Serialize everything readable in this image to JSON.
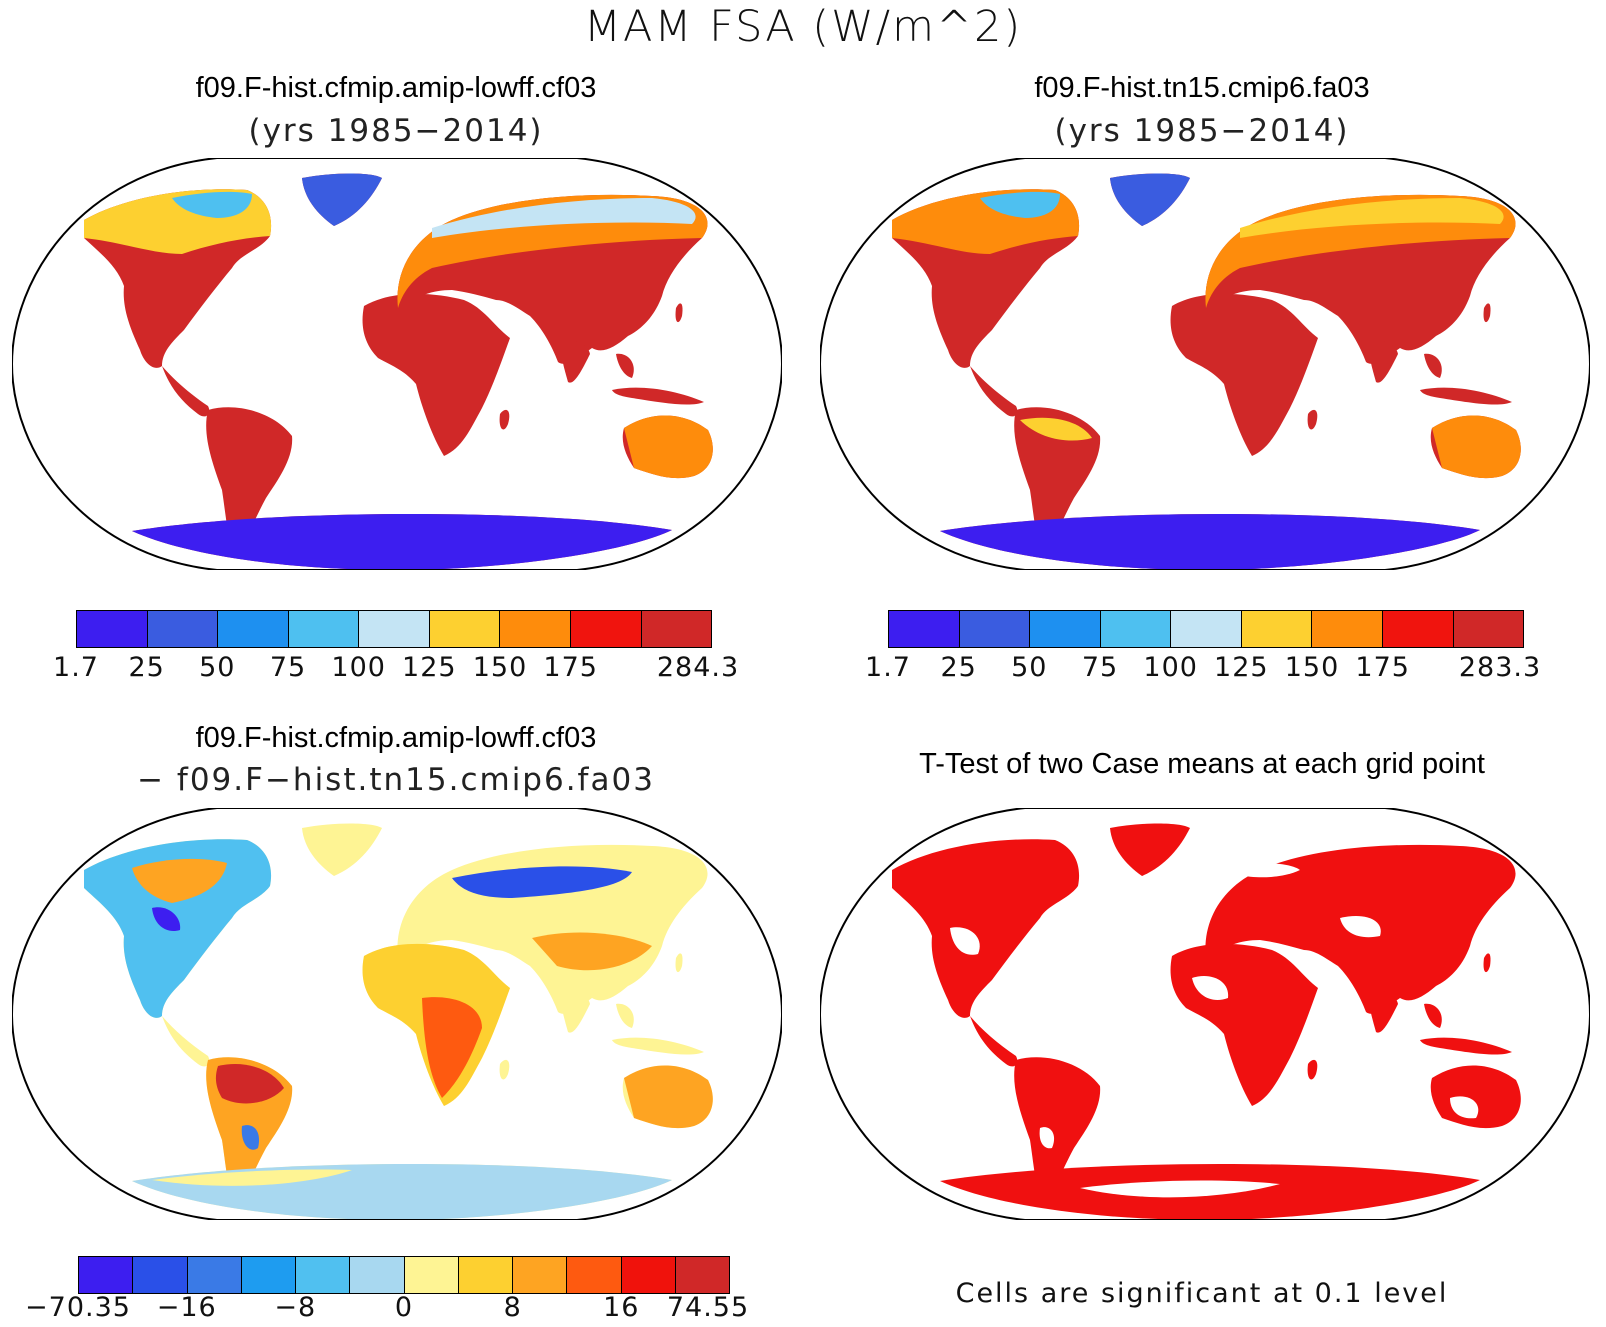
{
  "main_title": "MAM FSA (W/m^2)",
  "panels": [
    {
      "title": "f09.F-hist.cfmip.amip-lowff.cf03",
      "subtitle": "(yrs 1985−2014)",
      "colorbar": {
        "labels": [
          "1.7",
          "25",
          "50",
          "75",
          "100",
          "125",
          "150",
          "175",
          "284.3"
        ],
        "colors": [
          "#3d1ef0",
          "#3a5ce0",
          "#1e90f0",
          "#4ec0f0",
          "#c4e4f4",
          "#fdd030",
          "#fe8c0c",
          "#f0140e",
          "#d02828"
        ]
      }
    },
    {
      "title": "f09.F-hist.tn15.cmip6.fa03",
      "subtitle": "(yrs 1985−2014)",
      "colorbar": {
        "labels": [
          "1.7",
          "25",
          "50",
          "75",
          "100",
          "125",
          "150",
          "175",
          "283.3"
        ],
        "colors": [
          "#3d1ef0",
          "#3a5ce0",
          "#1e90f0",
          "#4ec0f0",
          "#c4e4f4",
          "#fdd030",
          "#fe8c0c",
          "#f0140e",
          "#d02828"
        ]
      }
    },
    {
      "title": "f09.F-hist.cfmip.amip-lowff.cf03",
      "subtitle": "− f09.F−hist.tn15.cmip6.fa03",
      "colorbar": {
        "labels": [
          "−70.35",
          "−16",
          "−8",
          "0",
          "8",
          "16",
          "74.55"
        ],
        "colors": [
          "#3d1ef0",
          "#2a50e8",
          "#3a7ae6",
          "#1e9cf0",
          "#50c0f0",
          "#a8d8f0",
          "#fef494",
          "#fdd030",
          "#fea422",
          "#fe5a10",
          "#f0120c",
          "#d02828"
        ]
      }
    },
    {
      "title": "T-Test of two Case means at each grid point",
      "note": "Cells are significant at 0.1 level"
    }
  ],
  "colors": {
    "significance": "#f01010",
    "ocean": "#ffffff",
    "antarctica_abs": "#3d1ef0",
    "antarctica_diff": "#a8d8f0"
  }
}
